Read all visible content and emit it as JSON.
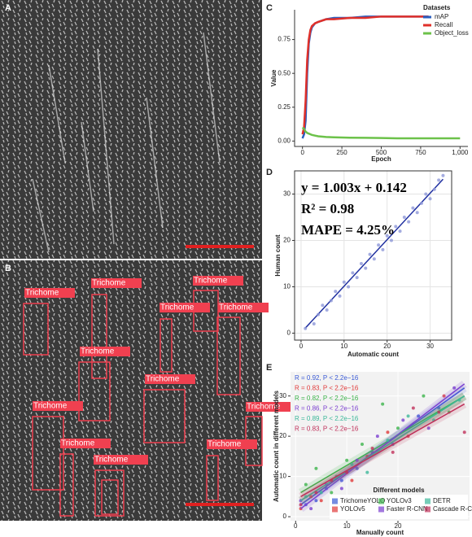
{
  "panel_labels": [
    "A",
    "B",
    "C",
    "D",
    "E"
  ],
  "image_b": {
    "box_labels": [
      "Trichome",
      "Trichome",
      "Trichome",
      "Trichome",
      "Trichome",
      "Trichome",
      "Trichome",
      "Trichome",
      "Trichome",
      "Trichome",
      "Trichome",
      "Trichome",
      "Trichome"
    ]
  },
  "chart_data": [
    {
      "type": "line",
      "xlabel": "Epoch",
      "ylabel": "Value",
      "legend_title": "Datasets",
      "legend": "top-right",
      "x": [
        0,
        10,
        20,
        30,
        40,
        50,
        60,
        80,
        100,
        150,
        200,
        300,
        400,
        500,
        600,
        700,
        800,
        900,
        1000
      ],
      "series": [
        {
          "name": "mAP",
          "color": "#2b5fbf",
          "values": [
            0.02,
            0.05,
            0.15,
            0.5,
            0.72,
            0.8,
            0.84,
            0.87,
            0.88,
            0.9,
            0.91,
            0.91,
            0.92,
            0.92,
            0.92,
            0.92,
            0.92,
            null,
            null
          ]
        },
        {
          "name": "Recall",
          "color": "#e0302a",
          "values": [
            0.05,
            0.1,
            0.3,
            0.6,
            0.75,
            0.82,
            0.85,
            0.87,
            0.88,
            0.9,
            0.9,
            0.91,
            0.91,
            0.92,
            0.92,
            0.92,
            0.92,
            null,
            null
          ]
        },
        {
          "name": "Object_loss",
          "color": "#6cc24a",
          "values": [
            0.1,
            0.09,
            0.07,
            0.06,
            0.055,
            0.05,
            0.045,
            0.04,
            0.035,
            0.03,
            0.028,
            0.025,
            0.024,
            0.022,
            0.02,
            0.02,
            0.02,
            0.02,
            0.02
          ]
        }
      ],
      "xlim": [
        -50,
        1050
      ],
      "xticks": [
        0,
        250,
        500,
        750,
        {
          "value": 1000,
          "label": "1,000"
        }
      ],
      "ylim": [
        -0.04,
        0.97
      ],
      "yticks": [
        {
          "value": 0,
          "label": "0.00"
        },
        0.25,
        {
          "value": 0.5,
          "label": "0.50"
        },
        0.75
      ],
      "grid": false
    },
    {
      "type": "scatter",
      "xlabel": "Automatic count",
      "ylabel": "Human count",
      "annotations": [
        "y = 1.003x + 0.142",
        "R² = 0.98",
        "MAPE = 4.25%"
      ],
      "series": [
        {
          "name": "Human count",
          "color": "#8d97d8",
          "x": [
            1,
            3,
            4,
            5,
            6,
            7,
            8,
            9,
            10,
            11,
            12,
            13,
            14,
            15,
            16,
            17,
            18,
            19,
            20,
            21,
            22,
            23,
            24,
            25,
            26,
            27,
            28,
            29,
            30,
            31,
            32,
            33
          ],
          "values": [
            1,
            2,
            4,
            6,
            5,
            7,
            9,
            8,
            11,
            10,
            13,
            12,
            15,
            14,
            17,
            16,
            19,
            18,
            21,
            20,
            23,
            22,
            25,
            24,
            27,
            26,
            28,
            30,
            29,
            31,
            33,
            34
          ],
          "fit": {
            "x": [
              1,
              33
            ],
            "values": [
              1.1,
              33.2
            ],
            "color": "#1f2fa0"
          }
        }
      ],
      "xlim": [
        -1.5,
        35
      ],
      "xticks": [
        0,
        10,
        20,
        30
      ],
      "ylim": [
        -1.5,
        35
      ],
      "yticks": [
        0,
        10,
        20,
        30
      ],
      "grid": true
    },
    {
      "type": "scatter",
      "xlabel": "Manually count",
      "ylabel": "Automatic count in different models",
      "legend_title": "Different models",
      "legend": "bottom",
      "annotations": [
        "R = 0.92, P < 2.2e−16",
        "R = 0.83, P < 2.2e−16",
        "R = 0.82, P < 2.2e−16",
        "R = 0.86, P < 2.2e−16",
        "R = 0.89, P < 2.2e−16",
        "R = 0.83, P < 2.2e−16"
      ],
      "series": [
        {
          "name": "TrichomeYOLO",
          "color": "#3b5bd6",
          "x": [
            2,
            4,
            6,
            9,
            12,
            15,
            19,
            24,
            28
          ],
          "values": [
            3,
            4,
            7,
            9,
            12,
            16,
            18,
            25,
            27
          ],
          "fit": {
            "x": [
              1,
              33
            ],
            "values": [
              3,
              32
            ]
          }
        },
        {
          "name": "YOLOv5",
          "color": "#e03a3a",
          "x": [
            1,
            3,
            5,
            8,
            11,
            14,
            18,
            22,
            29
          ],
          "values": [
            2,
            5,
            4,
            10,
            9,
            15,
            21,
            20,
            30
          ],
          "fit": {
            "x": [
              1,
              33
            ],
            "values": [
              4,
              30
            ]
          }
        },
        {
          "name": "YOLOv3",
          "color": "#3cb44b",
          "x": [
            2,
            4,
            7,
            10,
            13,
            17,
            20,
            25,
            30
          ],
          "values": [
            8,
            12,
            6,
            14,
            18,
            28,
            22,
            30,
            26
          ],
          "fit": {
            "x": [
              1,
              33
            ],
            "values": [
              6,
              30
            ]
          }
        },
        {
          "name": "Faster R-CNN",
          "color": "#7b3fd0",
          "x": [
            1,
            3,
            6,
            9,
            12,
            16,
            21,
            26,
            31
          ],
          "values": [
            4,
            2,
            8,
            7,
            14,
            20,
            24,
            22,
            32
          ],
          "fit": {
            "x": [
              1,
              33
            ],
            "values": [
              2,
              33
            ]
          }
        },
        {
          "name": "DETR",
          "color": "#3cb89a",
          "x": [
            2,
            5,
            8,
            11,
            14,
            18,
            22,
            27,
            32
          ],
          "values": [
            5,
            6,
            10,
            13,
            11,
            19,
            25,
            24,
            29
          ],
          "fit": {
            "x": [
              1,
              33
            ],
            "values": [
              4,
              30
            ]
          }
        },
        {
          "name": "Cascade R-CNN",
          "color": "#c0305a",
          "x": [
            1,
            4,
            7,
            10,
            15,
            19,
            23,
            28,
            33
          ],
          "values": [
            3,
            6,
            9,
            11,
            17,
            16,
            27,
            26,
            21
          ],
          "fit": {
            "x": [
              1,
              33
            ],
            "values": [
              5,
              28
            ]
          }
        }
      ],
      "xlim": [
        -1,
        34
      ],
      "xticks": [
        0,
        10,
        20
      ],
      "ylim": [
        -1,
        36
      ],
      "yticks": [
        0,
        10,
        20,
        30
      ],
      "grid": true
    }
  ]
}
